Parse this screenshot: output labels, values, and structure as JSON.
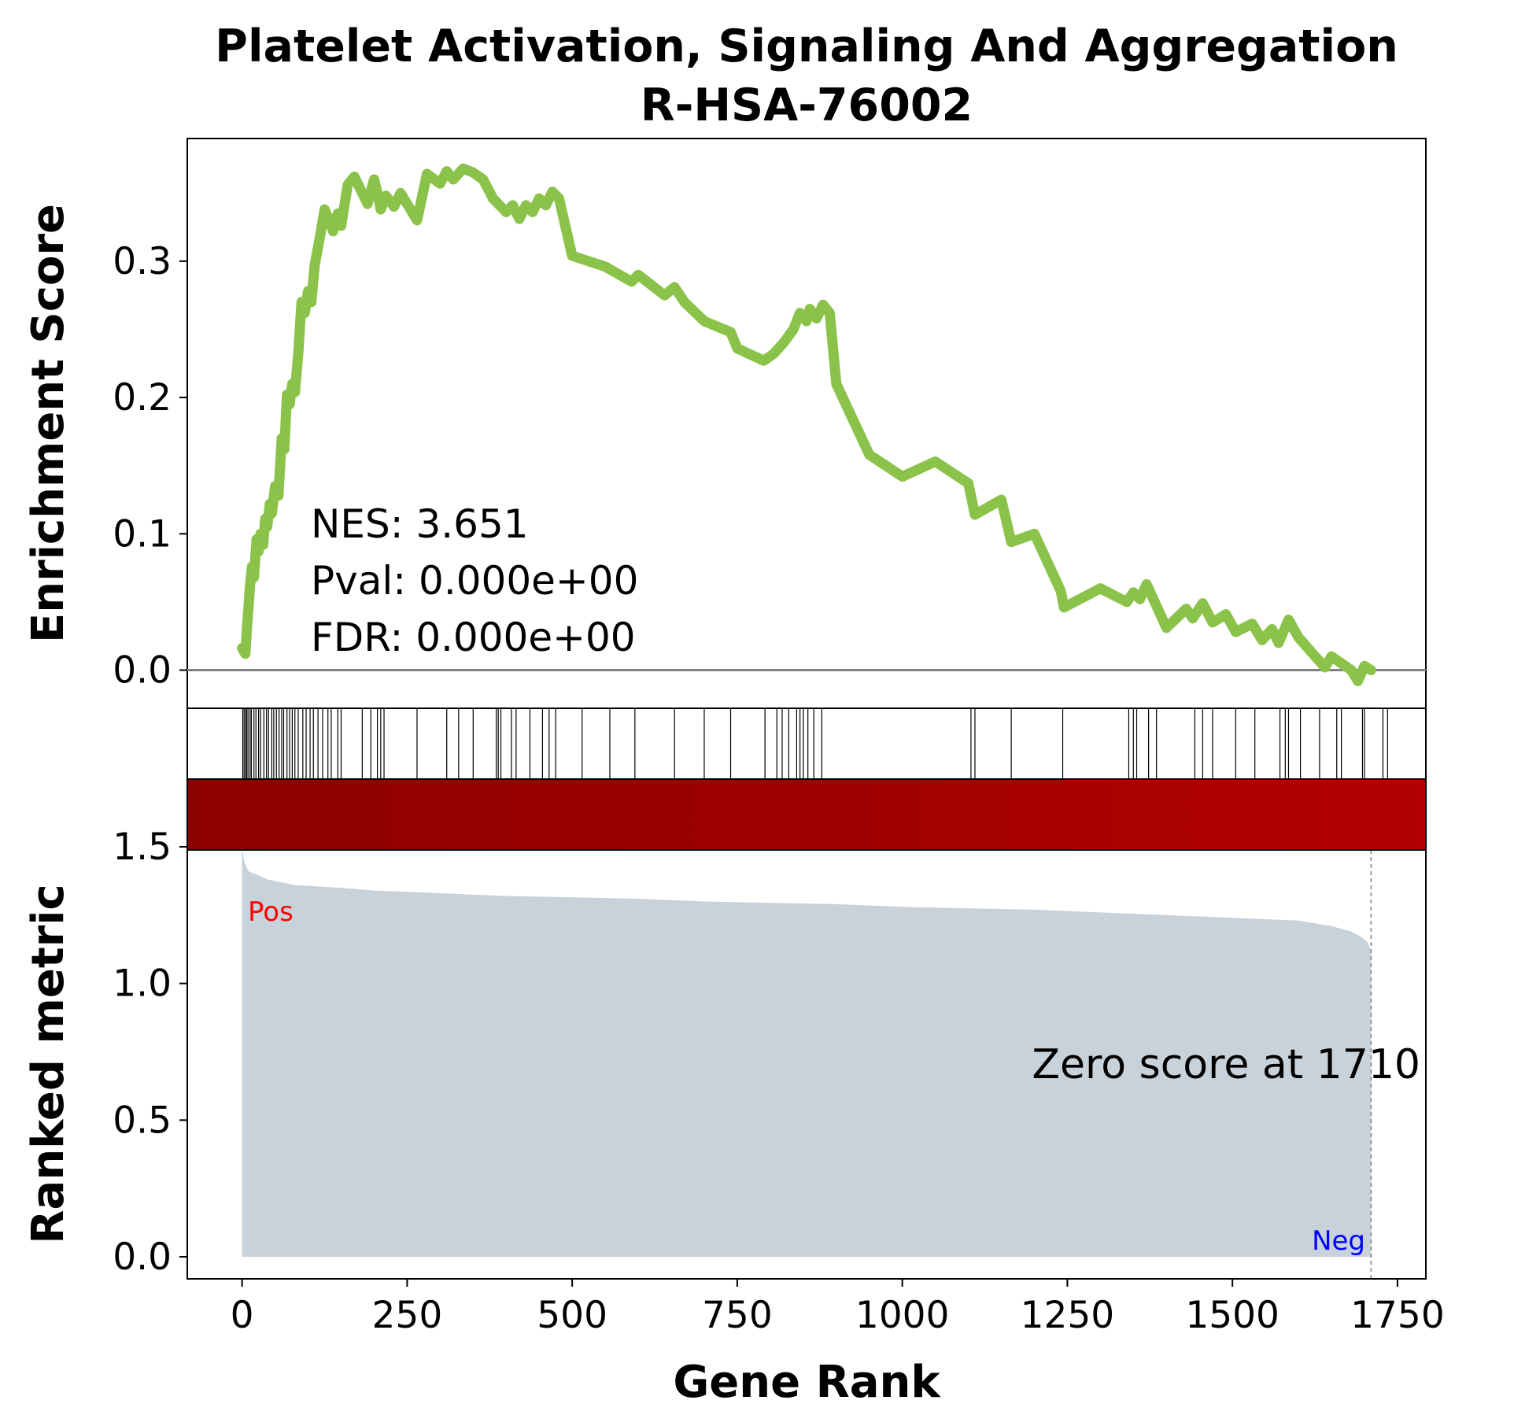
{
  "chart_data": {
    "type": "line",
    "title": "Platelet Activation, Signaling And Aggregation",
    "subtitle": "R-HSA-76002",
    "xlabel": "Gene Rank",
    "ylabel_top": "Enrichment Score",
    "ylabel_bottom": "Ranked metric",
    "xlim": [
      -83,
      1793
    ],
    "x_ticks": [
      0,
      250,
      500,
      750,
      1000,
      1250,
      1500,
      1750
    ],
    "x_tick_labels": [
      "0",
      "250",
      "500",
      "750",
      "1000",
      "1250",
      "1500",
      "1750"
    ],
    "es": {
      "ylim": [
        -0.028,
        0.39
      ],
      "y_ticks": [
        0.0,
        0.1,
        0.2,
        0.3
      ],
      "y_tick_labels": [
        "0.0",
        "0.1",
        "0.2",
        "0.3"
      ],
      "line_color": "#8bc34a",
      "x": [
        0,
        5,
        7,
        10,
        12,
        15,
        18,
        22,
        25,
        28,
        32,
        35,
        38,
        42,
        45,
        50,
        55,
        60,
        64,
        68,
        72,
        76,
        80,
        85,
        90,
        95,
        100,
        105,
        110,
        118,
        125,
        130,
        138,
        145,
        150,
        160,
        170,
        180,
        190,
        200,
        205,
        210,
        218,
        230,
        240,
        255,
        265,
        280,
        300,
        310,
        320,
        335,
        350,
        365,
        380,
        390,
        400,
        410,
        420,
        430,
        440,
        450,
        460,
        470,
        480,
        500,
        550,
        590,
        600,
        640,
        655,
        670,
        700,
        740,
        750,
        790,
        805,
        820,
        835,
        845,
        855,
        860,
        870,
        880,
        890,
        900,
        950,
        1000,
        1050,
        1100,
        1110,
        1150,
        1165,
        1200,
        1240,
        1245,
        1300,
        1340,
        1350,
        1360,
        1370,
        1385,
        1400,
        1430,
        1440,
        1455,
        1470,
        1490,
        1505,
        1530,
        1545,
        1560,
        1570,
        1585,
        1600,
        1640,
        1650,
        1680,
        1690,
        1700,
        1710
      ],
      "y": [
        0.016,
        0.012,
        0.028,
        0.048,
        0.062,
        0.076,
        0.068,
        0.096,
        0.087,
        0.1,
        0.092,
        0.111,
        0.105,
        0.122,
        0.115,
        0.135,
        0.128,
        0.17,
        0.162,
        0.202,
        0.195,
        0.21,
        0.204,
        0.232,
        0.27,
        0.262,
        0.278,
        0.27,
        0.297,
        0.318,
        0.338,
        0.332,
        0.322,
        0.335,
        0.326,
        0.356,
        0.362,
        0.352,
        0.342,
        0.36,
        0.35,
        0.338,
        0.348,
        0.34,
        0.35,
        0.338,
        0.33,
        0.364,
        0.357,
        0.366,
        0.36,
        0.368,
        0.365,
        0.36,
        0.346,
        0.341,
        0.336,
        0.341,
        0.331,
        0.341,
        0.336,
        0.346,
        0.341,
        0.351,
        0.346,
        0.304,
        0.296,
        0.285,
        0.29,
        0.275,
        0.281,
        0.27,
        0.256,
        0.248,
        0.236,
        0.227,
        0.232,
        0.24,
        0.25,
        0.262,
        0.256,
        0.265,
        0.258,
        0.268,
        0.262,
        0.21,
        0.158,
        0.142,
        0.153,
        0.137,
        0.114,
        0.125,
        0.094,
        0.1,
        0.058,
        0.046,
        0.06,
        0.05,
        0.057,
        0.052,
        0.063,
        0.047,
        0.031,
        0.045,
        0.038,
        0.049,
        0.035,
        0.041,
        0.028,
        0.034,
        0.022,
        0.03,
        0.02,
        0.037,
        0.024,
        0.002,
        0.01,
        0.0,
        -0.008,
        0.003,
        0.0
      ],
      "zero_line_color": "#808080"
    },
    "hits": [
      1,
      3,
      5,
      7,
      9,
      12,
      14,
      18,
      21,
      25,
      28,
      33,
      37,
      40,
      45,
      48,
      52,
      56,
      60,
      63,
      68,
      72,
      76,
      80,
      85,
      92,
      97,
      103,
      108,
      115,
      122,
      130,
      135,
      145,
      150,
      182,
      195,
      205,
      210,
      215,
      265,
      310,
      328,
      350,
      385,
      388,
      392,
      408,
      415,
      436,
      455,
      465,
      475,
      515,
      557,
      595,
      655,
      700,
      740,
      792,
      810,
      818,
      828,
      840,
      845,
      850,
      857,
      866,
      878,
      1104,
      1110,
      1165,
      1243,
      1343,
      1350,
      1355,
      1373,
      1385,
      1443,
      1455,
      1470,
      1505,
      1534,
      1572,
      1580,
      1585,
      1603,
      1632,
      1658,
      1665,
      1697,
      1700,
      1728,
      1735
    ],
    "heatmap": {
      "color_start": "#8b0000",
      "color_end": "#b30000"
    },
    "ranked_metric": {
      "ylim": [
        0.0,
        1.5
      ],
      "y_ticks": [
        0.0,
        0.5,
        1.0,
        1.5
      ],
      "y_tick_labels": [
        "0.0",
        "0.5",
        "1.0",
        "1.5"
      ],
      "fill_color": "#c8d2da",
      "x": [
        0,
        3,
        6,
        10,
        20,
        40,
        80,
        150,
        200,
        300,
        400,
        500,
        600,
        700,
        800,
        900,
        1000,
        1100,
        1200,
        1300,
        1400,
        1500,
        1600,
        1650,
        1680,
        1695,
        1705,
        1710
      ],
      "y": [
        1.5,
        1.45,
        1.43,
        1.41,
        1.4,
        1.38,
        1.36,
        1.35,
        1.34,
        1.33,
        1.32,
        1.315,
        1.31,
        1.3,
        1.295,
        1.29,
        1.28,
        1.275,
        1.27,
        1.26,
        1.25,
        1.24,
        1.23,
        1.21,
        1.19,
        1.17,
        1.15,
        1.12
      ],
      "zero_score_rank": 1710,
      "zero_label": "Zero score at 1710",
      "pos_label": "Pos",
      "neg_label": "Neg",
      "pos_color": "#ff0000",
      "neg_color": "#0000ff",
      "zero_line_color": "#808080"
    },
    "stats": {
      "nes": "NES: 3.651",
      "pval": "Pval: 0.000e+00",
      "fdr": "FDR: 0.000e+00"
    }
  }
}
